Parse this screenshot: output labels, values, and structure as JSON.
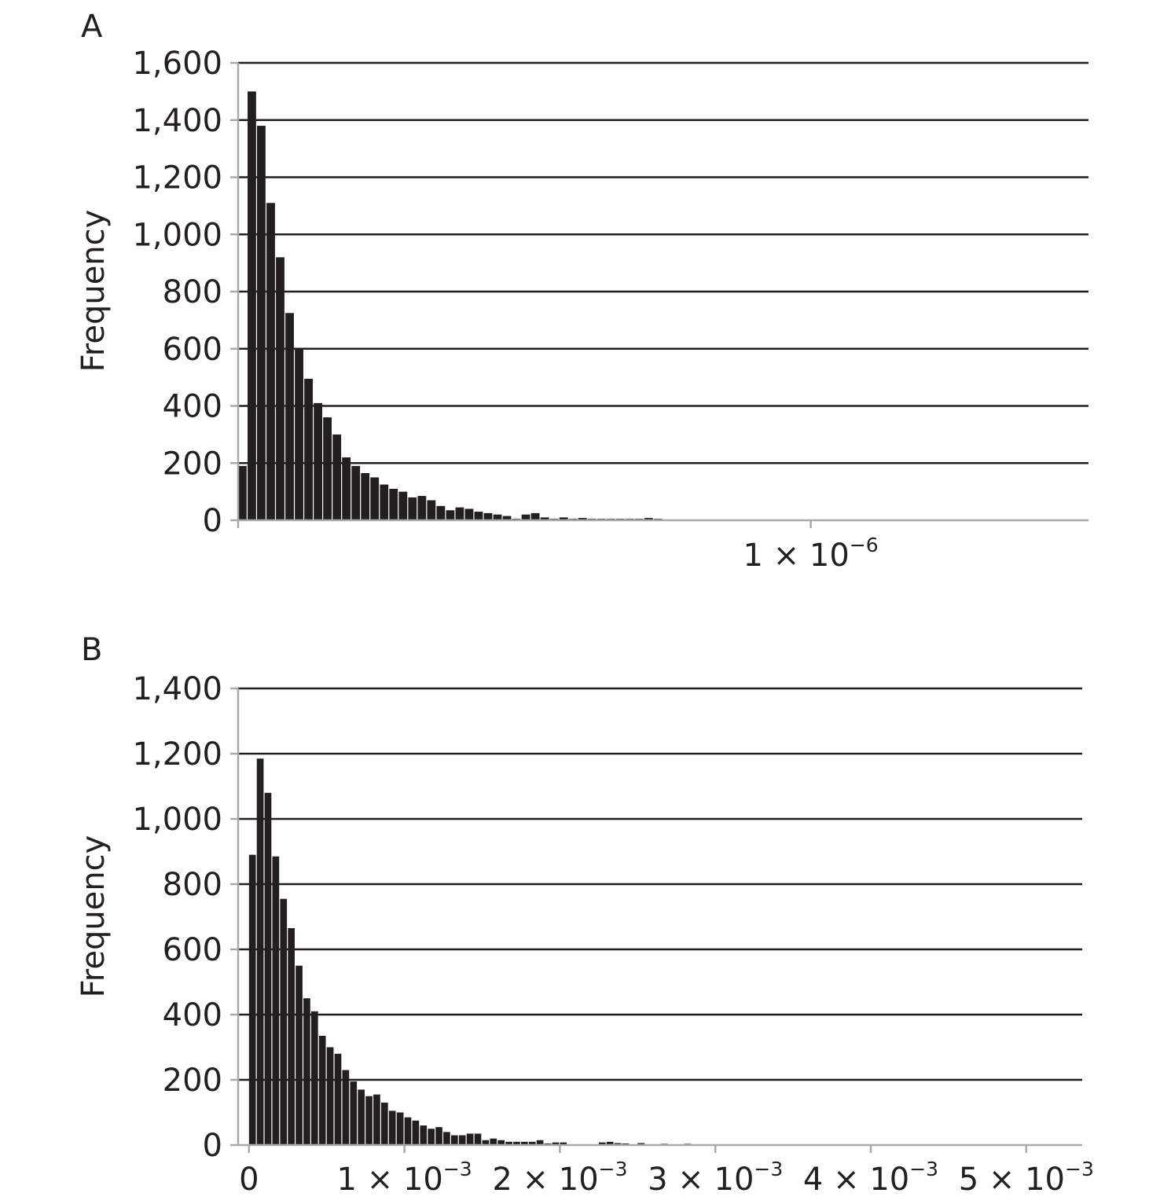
{
  "chart_data": [
    {
      "panel_label": "A",
      "type": "bar",
      "title": "",
      "xlabel": "",
      "ylabel": "Frequency",
      "ylim": [
        0,
        1600
      ],
      "yticks": [
        0,
        200,
        400,
        600,
        800,
        1000,
        1200,
        1400,
        1600
      ],
      "ytick_labels": [
        "0",
        "200",
        "400",
        "600",
        "800",
        "1,000",
        "1,200",
        "1,400",
        "1,600"
      ],
      "xlim": [
        0,
        1.485e-06
      ],
      "xticks": [
        0,
        1e-06
      ],
      "xtick_labels": [
        {
          "text": "",
          "base": "",
          "exp": ""
        },
        {
          "text": "1 × 10",
          "base": "1 × 10",
          "exp": "−6"
        }
      ],
      "bin_width": 1.65e-08,
      "grid": "horizontal",
      "bar_color": "#231f20",
      "values": [
        190,
        1500,
        1380,
        1110,
        920,
        725,
        600,
        495,
        410,
        360,
        300,
        220,
        190,
        165,
        150,
        125,
        110,
        100,
        80,
        85,
        70,
        50,
        35,
        45,
        40,
        30,
        25,
        20,
        15,
        5,
        20,
        25,
        10,
        5,
        10,
        5,
        8,
        5,
        5,
        5,
        5,
        5,
        5,
        8,
        5
      ]
    },
    {
      "panel_label": "B",
      "type": "bar",
      "title": "",
      "xlabel": "",
      "ylabel": "Frequency",
      "ylim": [
        0,
        1400
      ],
      "yticks": [
        0,
        200,
        400,
        600,
        800,
        1000,
        1200,
        1400
      ],
      "ytick_labels": [
        "0",
        "200",
        "400",
        "600",
        "800",
        "1,000",
        "1,200",
        "1,400"
      ],
      "xlim": [
        -7e-05,
        0.00536
      ],
      "xticks": [
        0,
        0.001,
        0.002,
        0.003,
        0.004,
        0.005
      ],
      "xtick_labels": [
        {
          "text": "0",
          "base": "0",
          "exp": ""
        },
        {
          "text": "1 × 10",
          "base": "1 × 10",
          "exp": "−3"
        },
        {
          "text": "2 × 10",
          "base": "2 × 10",
          "exp": "−3"
        },
        {
          "text": "3 × 10",
          "base": "3 × 10",
          "exp": "−3"
        },
        {
          "text": "4 × 10",
          "base": "4 × 10",
          "exp": "−3"
        },
        {
          "text": "5 × 10",
          "base": "5 × 10",
          "exp": "−3"
        }
      ],
      "bin_width": 5e-05,
      "grid": "horizontal",
      "bar_color": "#231f20",
      "values": [
        890,
        1185,
        1080,
        885,
        755,
        665,
        550,
        450,
        410,
        335,
        300,
        280,
        230,
        195,
        170,
        150,
        155,
        130,
        105,
        100,
        85,
        75,
        60,
        50,
        55,
        40,
        30,
        30,
        35,
        35,
        15,
        20,
        15,
        10,
        10,
        10,
        10,
        15,
        5,
        8,
        8,
        0,
        0,
        0,
        0,
        8,
        10,
        6,
        5,
        0,
        6,
        0,
        0,
        4,
        0,
        0,
        4,
        0
      ]
    }
  ]
}
